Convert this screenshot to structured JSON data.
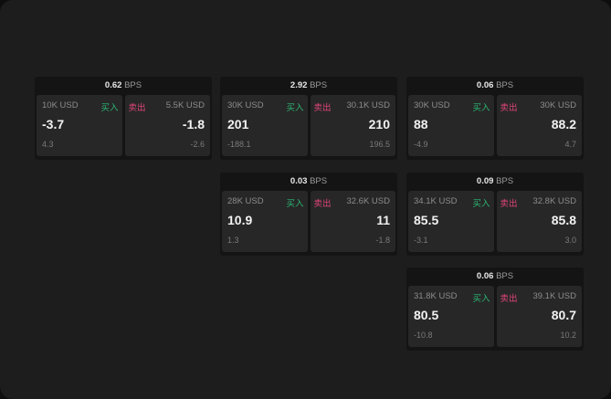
{
  "unit": "BPS",
  "buy_label": "买入",
  "sell_label": "卖出",
  "colors": {
    "buy": "#2bb673",
    "sell": "#e0457b"
  },
  "panels": [
    {
      "bps": "0.62",
      "buy": {
        "qty": "10K USD",
        "price": "-3.7",
        "change": "4.3"
      },
      "sell": {
        "qty": "5.5K USD",
        "price": "-1.8",
        "change": "-2.6"
      }
    },
    {
      "bps": "2.92",
      "buy": {
        "qty": "30K USD",
        "price": "201",
        "change": "-188.1"
      },
      "sell": {
        "qty": "30.1K USD",
        "price": "210",
        "change": "196.5"
      }
    },
    {
      "bps": "0.06",
      "buy": {
        "qty": "30K USD",
        "price": "88",
        "change": "-4.9"
      },
      "sell": {
        "qty": "30K USD",
        "price": "88.2",
        "change": "4.7"
      }
    },
    {
      "bps": "0.03",
      "buy": {
        "qty": "28K USD",
        "price": "10.9",
        "change": "1.3"
      },
      "sell": {
        "qty": "32.6K USD",
        "price": "11",
        "change": "-1.8"
      }
    },
    {
      "bps": "0.09",
      "buy": {
        "qty": "34.1K USD",
        "price": "85.5",
        "change": "-3.1"
      },
      "sell": {
        "qty": "32.8K USD",
        "price": "85.8",
        "change": "3.0"
      }
    },
    {
      "bps": "0.06",
      "buy": {
        "qty": "31.8K USD",
        "price": "80.5",
        "change": "-10.8"
      },
      "sell": {
        "qty": "39.1K USD",
        "price": "80.7",
        "change": "10.2"
      }
    }
  ]
}
